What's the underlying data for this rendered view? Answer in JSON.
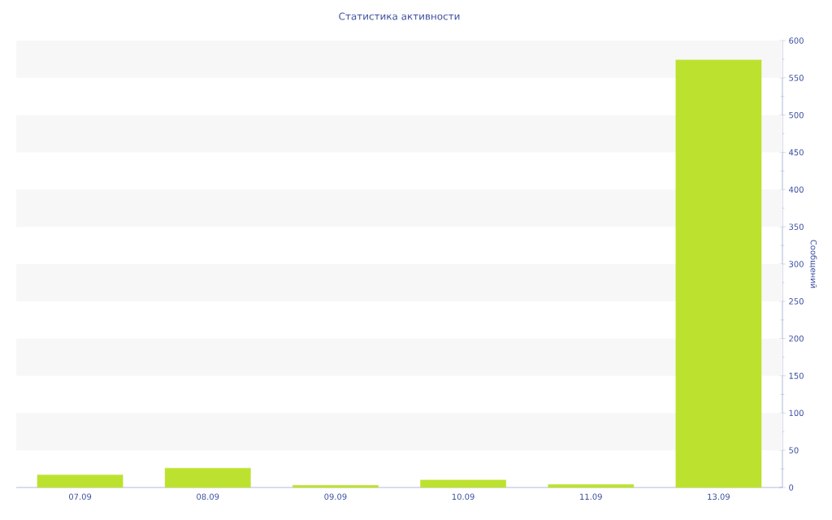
{
  "chart_data": {
    "type": "bar",
    "title": "Статистика активности",
    "ylabel": "Сообщений",
    "categories": [
      "07.09",
      "08.09",
      "09.09",
      "10.09",
      "11.09",
      "13.09"
    ],
    "values": [
      17,
      26,
      3,
      10,
      4,
      574
    ],
    "color": "#bce22f",
    "ylim": [
      0,
      600
    ],
    "yticks": [
      0,
      50,
      100,
      150,
      200,
      250,
      300,
      350,
      400,
      450,
      500,
      550,
      600
    ],
    "grid": false
  }
}
